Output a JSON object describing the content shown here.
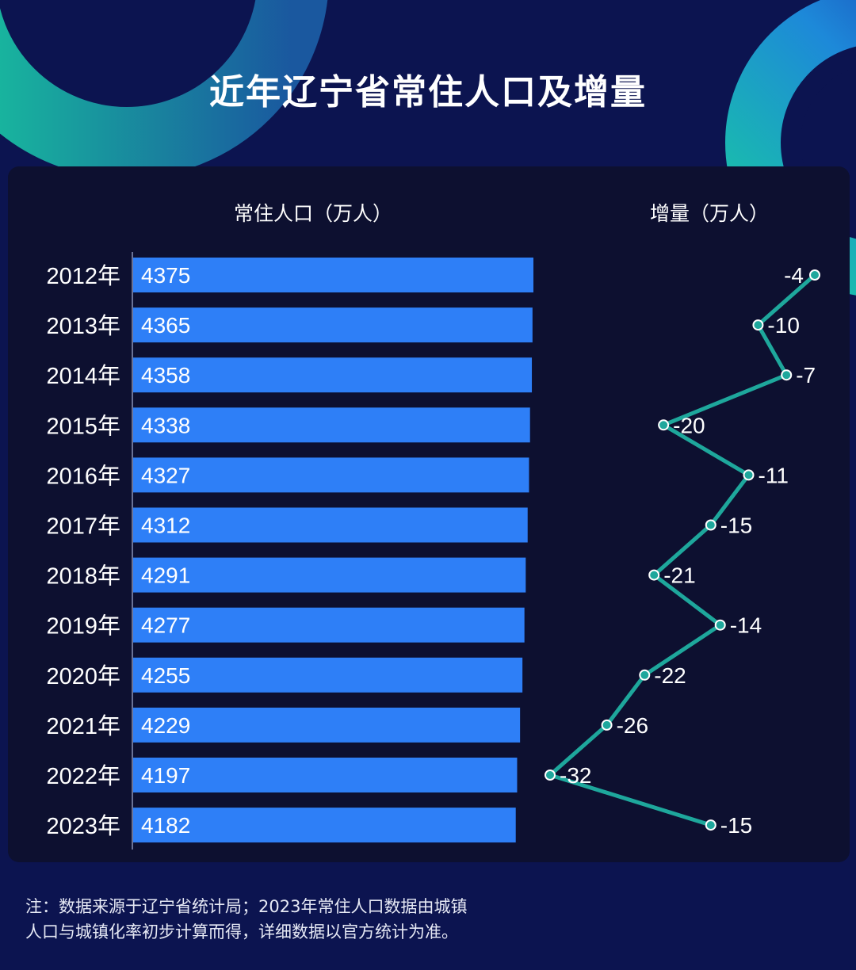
{
  "title": "近年辽宁省常住人口及增量",
  "chart_data": {
    "type": "bar",
    "categories": [
      "2012年",
      "2013年",
      "2014年",
      "2015年",
      "2016年",
      "2017年",
      "2018年",
      "2019年",
      "2020年",
      "2021年",
      "2022年",
      "2023年"
    ],
    "series": [
      {
        "name": "常住人口（万人）",
        "type": "bar",
        "values": [
          4375,
          4365,
          4358,
          4338,
          4327,
          4312,
          4291,
          4277,
          4255,
          4229,
          4197,
          4182
        ],
        "value_labels": [
          "4375",
          "4365",
          "4358",
          "4338",
          "4327",
          "4312",
          "4291",
          "4277",
          "4255",
          "4229",
          "4197",
          "4182"
        ],
        "color": "#2e7ff7"
      },
      {
        "name": "增量（万人）",
        "type": "line",
        "values": [
          -4,
          -10,
          -7,
          -20,
          -11,
          -15,
          -21,
          -14,
          -22,
          -26,
          -32,
          -15
        ],
        "value_labels": [
          "-4",
          "-10",
          "-7",
          "-20",
          "-11",
          "-15",
          "-21",
          "-14",
          "-22",
          "-26",
          "-32",
          "-15"
        ],
        "color": "#1ea79c"
      }
    ],
    "orientation": "horizontal",
    "bar_axis_range": [
      0,
      4375
    ],
    "line_axis_range": [
      -32,
      -4
    ],
    "grid": false,
    "legend": "none"
  },
  "note": {
    "line1": "注：数据来源于辽宁省统计局；2023年常住人口数据由城镇",
    "line2": "人口与城镇化率初步计算而得，详细数据以官方统计为准。"
  },
  "colors": {
    "background": "#0c1450",
    "panel": "#0d1030",
    "bar": "#2e7ff7",
    "line": "#1ea79c",
    "text": "#ffffff"
  }
}
